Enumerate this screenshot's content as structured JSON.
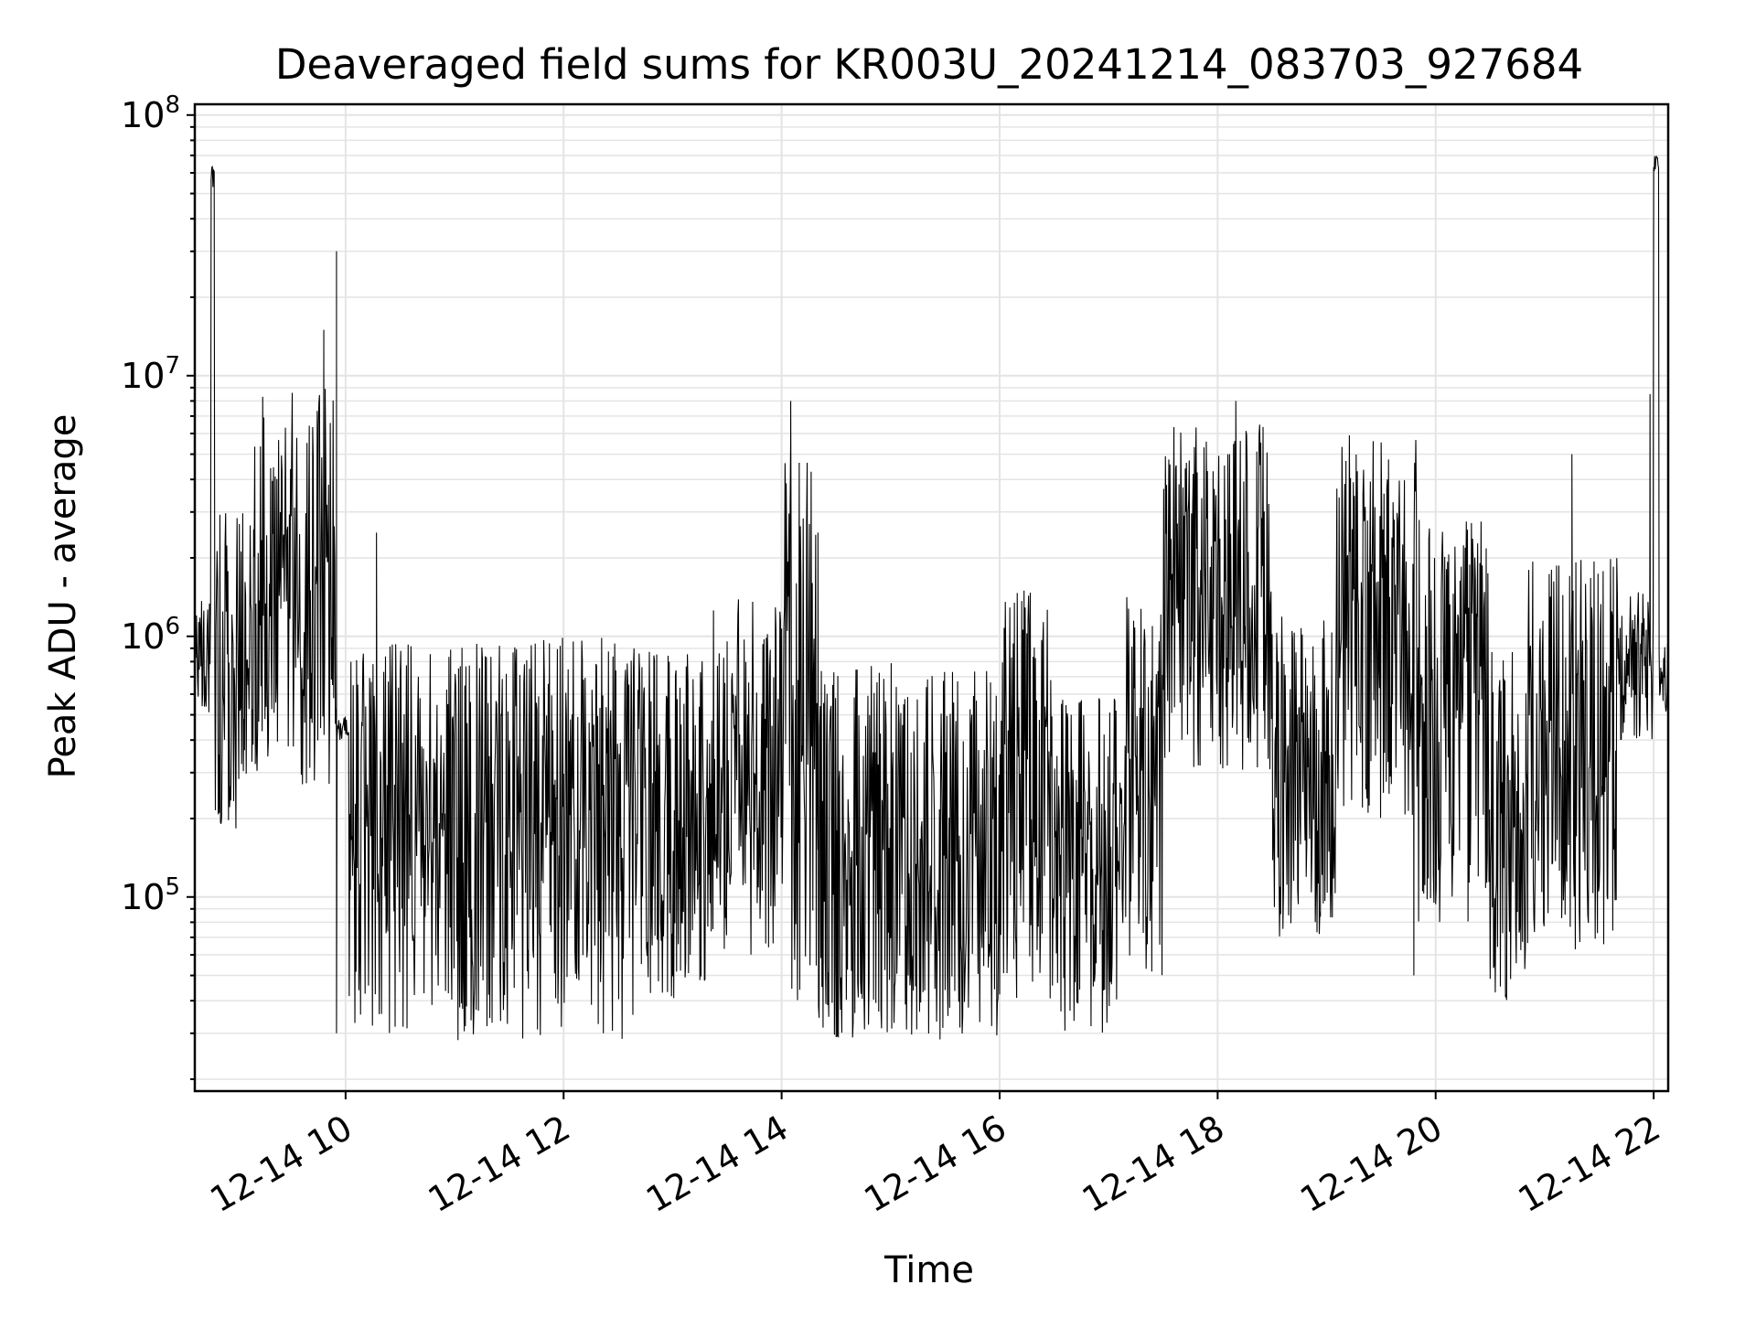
{
  "chart_data": {
    "type": "line",
    "title": "Deaveraged field sums for KR003U_20241214_083703_927684",
    "xlabel": "Time",
    "ylabel": "Peak ADU - average",
    "yscale": "log",
    "ylim": [
      18000,
      110000000
    ],
    "xlim": [
      "2024-12-14 08:37",
      "2024-12-14 22:08"
    ],
    "grid": true,
    "line_color": "#000000",
    "grid_color": "#e4e4e4",
    "y_ticks": [
      {
        "value": 100000,
        "base": "10",
        "exp": "5"
      },
      {
        "value": 1000000,
        "base": "10",
        "exp": "6"
      },
      {
        "value": 10000000,
        "base": "10",
        "exp": "7"
      },
      {
        "value": 100000000,
        "base": "10",
        "exp": "8"
      }
    ],
    "x_ticks": [
      {
        "value": "2024-12-14 10:00",
        "label": "12-14 10"
      },
      {
        "value": "2024-12-14 12:00",
        "label": "12-14 12"
      },
      {
        "value": "2024-12-14 14:00",
        "label": "12-14 14"
      },
      {
        "value": "2024-12-14 16:00",
        "label": "12-14 16"
      },
      {
        "value": "2024-12-14 18:00",
        "label": "12-14 18"
      },
      {
        "value": "2024-12-14 20:00",
        "label": "12-14 20"
      },
      {
        "value": "2024-12-14 22:00",
        "label": "12-14 22"
      }
    ],
    "segments": [
      {
        "start": "2024-12-14 08:37",
        "end": "2024-12-14 08:46",
        "lo": 500000,
        "hi": 1400000
      },
      {
        "start": "2024-12-14 08:46",
        "end": "2024-12-14 08:48",
        "lo": 50000000,
        "hi": 65000000
      },
      {
        "start": "2024-12-14 08:48",
        "end": "2024-12-14 09:10",
        "lo": 180000,
        "hi": 3000000
      },
      {
        "start": "2024-12-14 09:10",
        "end": "2024-12-14 09:55",
        "lo": 270000,
        "hi": 9000000
      },
      {
        "start": "2024-12-14 09:55",
        "end": "2024-12-14 10:02",
        "lo": 400000,
        "hi": 500000
      },
      {
        "start": "2024-12-14 10:02",
        "end": "2024-12-14 11:00",
        "lo": 28000,
        "hi": 1000000
      },
      {
        "start": "2024-12-14 11:00",
        "end": "2024-12-14 12:40",
        "lo": 28000,
        "hi": 1000000
      },
      {
        "start": "2024-12-14 12:40",
        "end": "2024-12-14 13:20",
        "lo": 40000,
        "hi": 900000
      },
      {
        "start": "2024-12-14 13:20",
        "end": "2024-12-14 14:00",
        "lo": 60000,
        "hi": 1400000
      },
      {
        "start": "2024-12-14 14:00",
        "end": "2024-12-14 14:20",
        "lo": 40000,
        "hi": 6000000
      },
      {
        "start": "2024-12-14 14:20",
        "end": "2024-12-14 16:00",
        "lo": 28000,
        "hi": 800000
      },
      {
        "start": "2024-12-14 16:00",
        "end": "2024-12-14 16:30",
        "lo": 40000,
        "hi": 1500000
      },
      {
        "start": "2024-12-14 16:30",
        "end": "2024-12-14 17:10",
        "lo": 30000,
        "hi": 600000
      },
      {
        "start": "2024-12-14 17:10",
        "end": "2024-12-14 17:30",
        "lo": 50000,
        "hi": 1500000
      },
      {
        "start": "2024-12-14 17:30",
        "end": "2024-12-14 18:30",
        "lo": 300000,
        "hi": 7000000
      },
      {
        "start": "2024-12-14 18:30",
        "end": "2024-12-14 19:05",
        "lo": 70000,
        "hi": 1200000
      },
      {
        "start": "2024-12-14 19:05",
        "end": "2024-12-14 19:50",
        "lo": 200000,
        "hi": 6000000
      },
      {
        "start": "2024-12-14 19:50",
        "end": "2024-12-14 20:30",
        "lo": 80000,
        "hi": 3000000
      },
      {
        "start": "2024-12-14 20:30",
        "end": "2024-12-14 20:50",
        "lo": 40000,
        "hi": 900000
      },
      {
        "start": "2024-12-14 20:50",
        "end": "2024-12-14 21:40",
        "lo": 60000,
        "hi": 2000000
      },
      {
        "start": "2024-12-14 21:40",
        "end": "2024-12-14 22:00",
        "lo": 400000,
        "hi": 1500000
      },
      {
        "start": "2024-12-14 22:00",
        "end": "2024-12-14 22:03",
        "lo": 60000000,
        "hi": 70000000
      },
      {
        "start": "2024-12-14 22:03",
        "end": "2024-12-14 22:08",
        "lo": 500000,
        "hi": 1000000
      }
    ],
    "spikes": [
      {
        "time": "2024-12-14 09:55",
        "value": 30000000
      },
      {
        "time": "2024-12-14 09:55",
        "value": 30000
      },
      {
        "time": "2024-12-14 09:48",
        "value": 15000000
      },
      {
        "time": "2024-12-14 10:17",
        "value": 2500000
      },
      {
        "time": "2024-12-14 14:05",
        "value": 8000000
      },
      {
        "time": "2024-12-14 14:02",
        "value": 4000000
      },
      {
        "time": "2024-12-14 14:20",
        "value": 2500000
      },
      {
        "time": "2024-12-14 18:10",
        "value": 8000000
      },
      {
        "time": "2024-12-14 21:15",
        "value": 5000000
      },
      {
        "time": "2024-12-14 21:58",
        "value": 8500000
      },
      {
        "time": "2024-12-14 19:48",
        "value": 50000
      },
      {
        "time": "2024-12-14 14:30",
        "value": 29000
      }
    ]
  }
}
